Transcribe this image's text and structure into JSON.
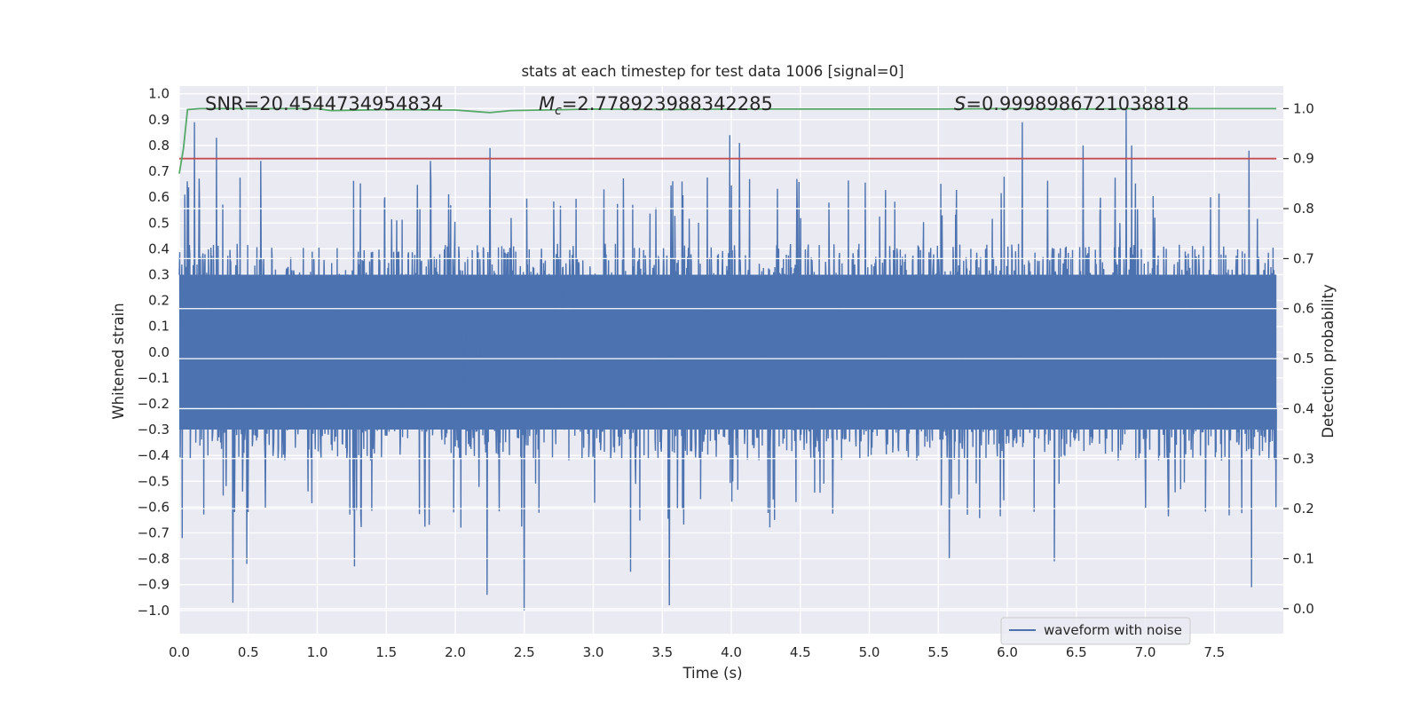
{
  "chart_data": {
    "type": "line",
    "title": "stats at each timestep for test data 1006 [signal=0]",
    "xlabel": "Time (s)",
    "ylabel": "Whitened strain",
    "y2label": "Detection probability",
    "xlim": [
      0.0,
      8.0
    ],
    "ylim": [
      -1.09,
      1.03
    ],
    "y2lim": [
      -0.05,
      1.045
    ],
    "xticks": [
      "0.0",
      "0.5",
      "1.0",
      "1.5",
      "2.0",
      "2.5",
      "3.0",
      "3.5",
      "4.0",
      "4.5",
      "5.0",
      "5.5",
      "6.0",
      "6.5",
      "7.0",
      "7.5"
    ],
    "xtick_values": [
      0.0,
      0.5,
      1.0,
      1.5,
      2.0,
      2.5,
      3.0,
      3.5,
      4.0,
      4.5,
      5.0,
      5.5,
      6.0,
      6.5,
      7.0,
      7.5
    ],
    "yticks": [
      "1.0",
      "0.9",
      "0.8",
      "0.7",
      "0.6",
      "0.5",
      "0.4",
      "0.3",
      "0.2",
      "0.1",
      "0.0",
      "−0.1",
      "−0.2",
      "−0.3",
      "−0.4",
      "−0.5",
      "−0.6",
      "−0.7",
      "−0.8",
      "−0.9",
      "−1.0"
    ],
    "ytick_values": [
      1.0,
      0.9,
      0.8,
      0.7,
      0.6,
      0.5,
      0.4,
      0.3,
      0.2,
      0.1,
      0.0,
      -0.1,
      -0.2,
      -0.3,
      -0.4,
      -0.5,
      -0.6,
      -0.7,
      -0.8,
      -0.9,
      -1.0
    ],
    "y2ticks": [
      "1.0",
      "0.9",
      "0.8",
      "0.7",
      "0.6",
      "0.5",
      "0.4",
      "0.3",
      "0.2",
      "0.1",
      "0.0"
    ],
    "y2tick_values": [
      1.0,
      0.9,
      0.8,
      0.7,
      0.6,
      0.5,
      0.4,
      0.3,
      0.2,
      0.1,
      0.0
    ],
    "annotations": {
      "snr": "SNR=20.4544734954834",
      "mc_symbol": "M",
      "mc_sub": "c",
      "mc_value": "=2.778923988342285",
      "s_symbol": "S",
      "s_value": "=0.9998986721038818"
    },
    "legend": {
      "label": "waveform with noise",
      "position": "lower-right"
    },
    "colors": {
      "waveform": "#4c72b0",
      "probability": "#55a868",
      "threshold": "#c44e52",
      "background": "#eaeaf2",
      "grid": "#ffffff"
    },
    "series": [
      {
        "name": "waveform with noise",
        "axis": "left",
        "envelope_typical": 0.35,
        "noise_seed": 1006,
        "spikes": [
          {
            "t": 0.02,
            "v": -0.72
          },
          {
            "t": 0.04,
            "v": 0.61
          },
          {
            "t": 0.11,
            "v": 0.89
          },
          {
            "t": 0.27,
            "v": 0.83
          },
          {
            "t": 0.39,
            "v": -0.97
          },
          {
            "t": 0.49,
            "v": -0.82
          },
          {
            "t": 0.59,
            "v": 0.74
          },
          {
            "t": 1.27,
            "v": -0.83
          },
          {
            "t": 1.82,
            "v": 0.74
          },
          {
            "t": 2.23,
            "v": -0.94
          },
          {
            "t": 2.25,
            "v": 0.79
          },
          {
            "t": 2.5,
            "v": -1.0
          },
          {
            "t": 3.55,
            "v": -0.98
          },
          {
            "t": 3.99,
            "v": 0.84
          },
          {
            "t": 4.06,
            "v": 0.81
          },
          {
            "t": 6.11,
            "v": 0.89
          },
          {
            "t": 6.34,
            "v": -0.81
          },
          {
            "t": 6.55,
            "v": 0.8
          },
          {
            "t": 6.86,
            "v": 0.94
          },
          {
            "t": 6.9,
            "v": 0.8
          },
          {
            "t": 7.75,
            "v": 0.78
          },
          {
            "t": 7.77,
            "v": -0.91
          },
          {
            "t": 3.27,
            "v": -0.85
          },
          {
            "t": 5.58,
            "v": -0.8
          }
        ]
      },
      {
        "name": "detection probability",
        "axis": "right",
        "x": [
          0.0,
          0.03,
          0.06,
          0.15,
          0.5,
          1.0,
          1.1,
          1.5,
          2.0,
          2.15,
          2.25,
          2.4,
          3.0,
          3.5,
          4.0,
          4.5,
          5.0,
          5.5,
          6.0,
          6.5,
          7.0,
          7.5,
          7.95
        ],
        "y": [
          0.87,
          0.92,
          0.998,
          1.0,
          1.0,
          1.0,
          0.996,
          0.998,
          0.997,
          0.994,
          0.992,
          0.996,
          0.999,
          0.998,
          0.999,
          0.999,
          0.999,
          0.999,
          1.0,
          0.999,
          1.0,
          1.0,
          1.0
        ]
      },
      {
        "name": "threshold",
        "axis": "right",
        "x": [
          0.0,
          7.95
        ],
        "y": [
          0.9,
          0.9
        ]
      }
    ]
  }
}
